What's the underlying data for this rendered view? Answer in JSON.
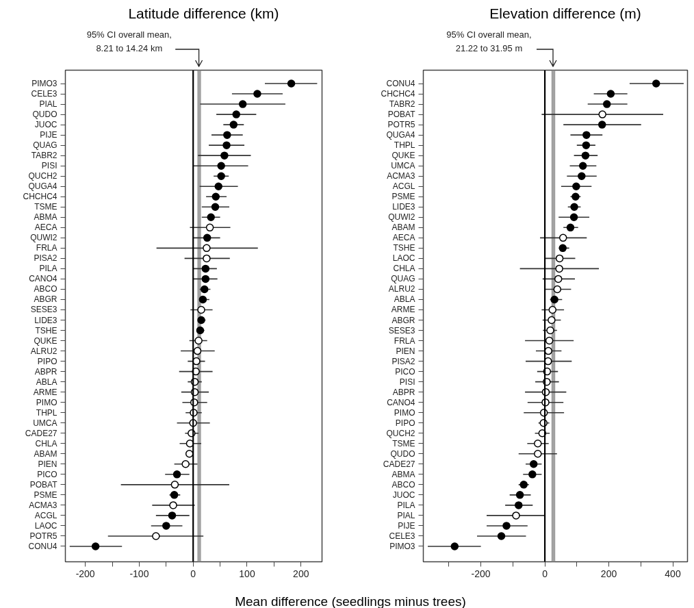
{
  "chart_data": [
    {
      "type": "scatter",
      "orientation": "horizontal",
      "title": "Latitude difference (km)",
      "xlabel": "Mean difference (seedlings minus trees)",
      "annotations": [
        "95% CI overall mean,\n8.21 to 14.24 km"
      ],
      "categories": [
        "PIMO3",
        "CELE3",
        "PIAL",
        "QUDO",
        "JUOC",
        "PIJE",
        "QUAG",
        "TABR2",
        "PISI",
        "QUCH2",
        "QUGA4",
        "CHCHC4",
        "TSME",
        "ABMA",
        "AECA",
        "QUWI2",
        "FRLA",
        "PISA2",
        "PILA",
        "CANO4",
        "ABCO",
        "ABGR",
        "SESE3",
        "LIDE3",
        "TSHE",
        "QUKE",
        "ALRU2",
        "PIPO",
        "ABPR",
        "ABLA",
        "ARME",
        "PIMO",
        "THPL",
        "UMCA",
        "CADE27",
        "CHLA",
        "ABAM",
        "PIEN",
        "PICO",
        "POBAT",
        "PSME",
        "ACMA3",
        "ACGL",
        "LAOC",
        "POTR5",
        "CONU4"
      ],
      "values": [
        182,
        119,
        92,
        80,
        75,
        63,
        62,
        58,
        52,
        52,
        47,
        42,
        41,
        33,
        31,
        26,
        25,
        25,
        23,
        23,
        21,
        18,
        15,
        15,
        13,
        10,
        8,
        6,
        5,
        3,
        3,
        2,
        1,
        0,
        -3,
        -6,
        -7,
        -14,
        -30,
        -34,
        -35,
        -37,
        -39,
        -50,
        -69,
        -181
      ],
      "errors": [
        [
          133,
          230
        ],
        [
          72,
          166
        ],
        [
          13,
          171
        ],
        [
          43,
          117
        ],
        [
          56,
          94
        ],
        [
          34,
          92
        ],
        [
          29,
          95
        ],
        [
          9,
          107
        ],
        [
          1,
          102
        ],
        [
          38,
          66
        ],
        [
          12,
          83
        ],
        [
          24,
          62
        ],
        [
          16,
          67
        ],
        [
          16,
          50
        ],
        [
          -6,
          69
        ],
        [
          1,
          50
        ],
        [
          -68,
          120
        ],
        [
          -16,
          68
        ],
        [
          1,
          44
        ],
        [
          1,
          45
        ],
        [
          12,
          32
        ],
        [
          12,
          30
        ],
        [
          -5,
          36
        ],
        [
          9,
          23
        ],
        [
          8,
          21
        ],
        [
          -7,
          26
        ],
        [
          -23,
          40
        ],
        [
          -10,
          22
        ],
        [
          -26,
          36
        ],
        [
          -10,
          16
        ],
        [
          -22,
          29
        ],
        [
          -20,
          26
        ],
        [
          -14,
          16
        ],
        [
          -30,
          31
        ],
        [
          -15,
          10
        ],
        [
          -25,
          15
        ],
        [
          -13,
          -1
        ],
        [
          -35,
          8
        ],
        [
          -52,
          -7
        ],
        [
          -134,
          67
        ],
        [
          -44,
          -24
        ],
        [
          -76,
          3
        ],
        [
          -69,
          -7
        ],
        [
          -78,
          -20
        ],
        [
          -158,
          19
        ],
        [
          -229,
          -132
        ]
      ],
      "colors": [
        "#000000",
        "#000000",
        "#000000",
        "#000000",
        "#000000",
        "#000000",
        "#000000",
        "#000000",
        "#000000",
        "#000000",
        "#000000",
        "#000000",
        "#000000",
        "#000000",
        "#ffffff",
        "#000000",
        "#ffffff",
        "#ffffff",
        "#000000",
        "#000000",
        "#000000",
        "#000000",
        "#ffffff",
        "#000000",
        "#000000",
        "#ffffff",
        "#ffffff",
        "#ffffff",
        "#ffffff",
        "#ffffff",
        "#ffffff",
        "#ffffff",
        "#ffffff",
        "#ffffff",
        "#ffffff",
        "#ffffff",
        "#ffffff",
        "#ffffff",
        "#000000",
        "#ffffff",
        "#000000",
        "#ffffff",
        "#000000",
        "#000000",
        "#ffffff",
        "#000000"
      ],
      "marker": "circle",
      "xlim": [
        -237,
        239
      ],
      "xticks": [
        -200,
        {
          "value": -150,
          "label": null
        },
        -100,
        {
          "value": -50,
          "label": null
        },
        0,
        {
          "value": 50,
          "label": null
        },
        100,
        {
          "value": 150,
          "label": null
        },
        200
      ],
      "bands": [
        {
          "axis": "x",
          "from": 8.21,
          "to": 14.24,
          "color": "#999999"
        }
      ],
      "ref_lines": [
        {
          "axis": "x",
          "value": 0,
          "color": "#000000"
        }
      ]
    },
    {
      "type": "scatter",
      "orientation": "horizontal",
      "title": "Elevation difference (m)",
      "annotations": [
        "95% CI overall mean,\n21.22 to 31.95 m"
      ],
      "categories": [
        "CONU4",
        "CHCHC4",
        "TABR2",
        "POBAT",
        "POTR5",
        "QUGA4",
        "THPL",
        "QUKE",
        "UMCA",
        "ACMA3",
        "ACGL",
        "PSME",
        "LIDE3",
        "QUWI2",
        "ABAM",
        "AECA",
        "TSHE",
        "LAOC",
        "CHLA",
        "QUAG",
        "ALRU2",
        "ABLA",
        "ARME",
        "ABGR",
        "SESE3",
        "FRLA",
        "PIEN",
        "PISA2",
        "PICO",
        "PISI",
        "ABPR",
        "CANO4",
        "PIMO",
        "PIPO",
        "QUCH2",
        "TSME",
        "QUDO",
        "CADE27",
        "ABMA",
        "ABCO",
        "JUOC",
        "PILA",
        "PIAL",
        "PIJE",
        "CELE3",
        "PIMO3"
      ],
      "values": [
        348,
        206,
        194,
        180,
        179,
        130,
        129,
        127,
        119,
        115,
        98,
        96,
        92,
        91,
        80,
        57,
        56,
        46,
        45,
        42,
        39,
        30,
        24,
        21,
        17,
        14,
        11,
        10,
        7,
        6,
        3,
        2,
        -3,
        -4,
        -8,
        -22,
        -22,
        -35,
        -39,
        -66,
        -78,
        -82,
        -90,
        -120,
        -136,
        -282
      ],
      "errors": [
        [
          265,
          434
        ],
        [
          153,
          258
        ],
        [
          134,
          258
        ],
        [
          -10,
          370
        ],
        [
          58,
          301
        ],
        [
          80,
          180
        ],
        [
          100,
          158
        ],
        [
          91,
          165
        ],
        [
          78,
          161
        ],
        [
          69,
          162
        ],
        [
          51,
          146
        ],
        [
          80,
          112
        ],
        [
          72,
          112
        ],
        [
          43,
          139
        ],
        [
          58,
          104
        ],
        [
          -15,
          131
        ],
        [
          44,
          76
        ],
        [
          0,
          95
        ],
        [
          -78,
          169
        ],
        [
          -7,
          94
        ],
        [
          2,
          82
        ],
        [
          16,
          54
        ],
        [
          -10,
          60
        ],
        [
          -7,
          50
        ],
        [
          -6,
          38
        ],
        [
          -62,
          90
        ],
        [
          -28,
          52
        ],
        [
          -60,
          84
        ],
        [
          -24,
          41
        ],
        [
          -30,
          44
        ],
        [
          -62,
          67
        ],
        [
          -54,
          58
        ],
        [
          -66,
          60
        ],
        [
          -20,
          14
        ],
        [
          -31,
          15
        ],
        [
          -55,
          12
        ],
        [
          -82,
          38
        ],
        [
          -60,
          -10
        ],
        [
          -68,
          -10
        ],
        [
          -82,
          -50
        ],
        [
          -110,
          -44
        ],
        [
          -124,
          -38
        ],
        [
          -182,
          0
        ],
        [
          -182,
          -54
        ],
        [
          -212,
          -59
        ],
        [
          -366,
          -200
        ]
      ],
      "colors": [
        "#000000",
        "#000000",
        "#000000",
        "#ffffff",
        "#000000",
        "#000000",
        "#000000",
        "#000000",
        "#000000",
        "#000000",
        "#000000",
        "#000000",
        "#000000",
        "#000000",
        "#000000",
        "#ffffff",
        "#000000",
        "#ffffff",
        "#ffffff",
        "#ffffff",
        "#ffffff",
        "#000000",
        "#ffffff",
        "#ffffff",
        "#ffffff",
        "#ffffff",
        "#ffffff",
        "#ffffff",
        "#ffffff",
        "#ffffff",
        "#ffffff",
        "#ffffff",
        "#ffffff",
        "#ffffff",
        "#ffffff",
        "#ffffff",
        "#ffffff",
        "#000000",
        "#000000",
        "#000000",
        "#000000",
        "#000000",
        "#ffffff",
        "#000000",
        "#000000",
        "#000000"
      ],
      "marker": "circle",
      "xlim": [
        -380,
        446
      ],
      "xticks": [
        {
          "value": -300,
          "label": null
        },
        -200,
        {
          "value": -100,
          "label": null
        },
        0,
        {
          "value": 100,
          "label": null
        },
        200,
        {
          "value": 300,
          "label": null
        },
        400
      ],
      "bands": [
        {
          "axis": "x",
          "from": 21.22,
          "to": 31.95,
          "color": "#999999"
        }
      ],
      "ref_lines": [
        {
          "axis": "x",
          "value": 0,
          "color": "#000000"
        }
      ]
    }
  ]
}
